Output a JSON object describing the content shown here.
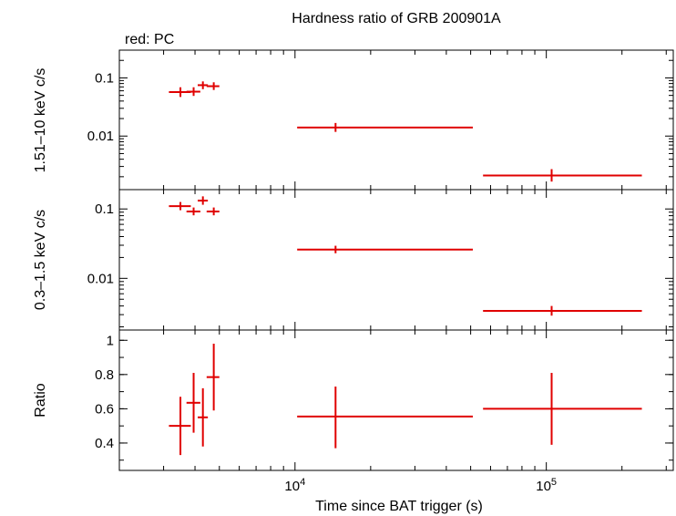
{
  "chart_data": {
    "type": "scatter",
    "title": "Hardness ratio of GRB 200901A",
    "subtitle": "red: PC",
    "xlabel": "Time since BAT trigger (s)",
    "xscale": "log",
    "xlim": [
      2000,
      320000
    ],
    "x_ticks": [
      {
        "value": 10000,
        "label": "10^4"
      },
      {
        "value": 100000,
        "label": "10^5"
      }
    ],
    "series_color": "#e00000",
    "panels": [
      {
        "name": "hard",
        "ylabel": "1.51–10 keV c/s",
        "yscale": "log",
        "ylim": [
          0.0012,
          0.3
        ],
        "y_ticks": [
          {
            "value": 0.1,
            "label": "0.1"
          },
          {
            "value": 0.01,
            "label": "0.01"
          }
        ],
        "points": [
          {
            "x": 3500,
            "xlo": 3150,
            "xhi": 3850,
            "y": 0.057,
            "ylo": 0.047,
            "yhi": 0.069
          },
          {
            "x": 3950,
            "xlo": 3700,
            "xhi": 4200,
            "y": 0.058,
            "ylo": 0.049,
            "yhi": 0.069
          },
          {
            "x": 4300,
            "xlo": 4100,
            "xhi": 4500,
            "y": 0.075,
            "ylo": 0.064,
            "yhi": 0.087
          },
          {
            "x": 4750,
            "xlo": 4450,
            "xhi": 5000,
            "y": 0.072,
            "ylo": 0.062,
            "yhi": 0.084
          },
          {
            "x": 14500,
            "xlo": 10200,
            "xhi": 51000,
            "y": 0.014,
            "ylo": 0.0118,
            "yhi": 0.0168
          },
          {
            "x": 105000,
            "xlo": 56000,
            "xhi": 240000,
            "y": 0.0021,
            "ylo": 0.00165,
            "yhi": 0.0027
          }
        ]
      },
      {
        "name": "soft",
        "ylabel": "0.3–1.5 keV c/s",
        "yscale": "log",
        "ylim": [
          0.0018,
          0.19
        ],
        "y_ticks": [
          {
            "value": 0.1,
            "label": "0.1"
          },
          {
            "value": 0.01,
            "label": "0.01"
          }
        ],
        "points": [
          {
            "x": 3500,
            "xlo": 3150,
            "xhi": 3850,
            "y": 0.11,
            "ylo": 0.096,
            "yhi": 0.126
          },
          {
            "x": 3950,
            "xlo": 3700,
            "xhi": 4200,
            "y": 0.092,
            "ylo": 0.081,
            "yhi": 0.105
          },
          {
            "x": 4300,
            "xlo": 4100,
            "xhi": 4500,
            "y": 0.132,
            "ylo": 0.115,
            "yhi": 0.152
          },
          {
            "x": 4750,
            "xlo": 4450,
            "xhi": 5000,
            "y": 0.092,
            "ylo": 0.081,
            "yhi": 0.105
          },
          {
            "x": 14500,
            "xlo": 10200,
            "xhi": 51000,
            "y": 0.026,
            "ylo": 0.023,
            "yhi": 0.0295
          },
          {
            "x": 105000,
            "xlo": 56000,
            "xhi": 240000,
            "y": 0.0034,
            "ylo": 0.0029,
            "yhi": 0.004
          }
        ]
      },
      {
        "name": "ratio",
        "ylabel": "Ratio",
        "yscale": "linear",
        "ylim": [
          0.24,
          1.06
        ],
        "y_ticks": [
          {
            "value": 0.4,
            "label": "0.4"
          },
          {
            "value": 0.6,
            "label": "0.6"
          },
          {
            "value": 0.8,
            "label": "0.8"
          },
          {
            "value": 1,
            "label": "1"
          }
        ],
        "points": [
          {
            "x": 3500,
            "xlo": 3150,
            "xhi": 3850,
            "y": 0.5,
            "ylo": 0.33,
            "yhi": 0.67
          },
          {
            "x": 3950,
            "xlo": 3700,
            "xhi": 4200,
            "y": 0.635,
            "ylo": 0.46,
            "yhi": 0.81
          },
          {
            "x": 4300,
            "xlo": 4100,
            "xhi": 4500,
            "y": 0.55,
            "ylo": 0.38,
            "yhi": 0.72
          },
          {
            "x": 4750,
            "xlo": 4450,
            "xhi": 5000,
            "y": 0.785,
            "ylo": 0.59,
            "yhi": 0.98
          },
          {
            "x": 14500,
            "xlo": 10200,
            "xhi": 51000,
            "y": 0.555,
            "ylo": 0.37,
            "yhi": 0.73
          },
          {
            "x": 105000,
            "xlo": 56000,
            "xhi": 240000,
            "y": 0.6,
            "ylo": 0.39,
            "yhi": 0.81
          }
        ]
      }
    ]
  }
}
